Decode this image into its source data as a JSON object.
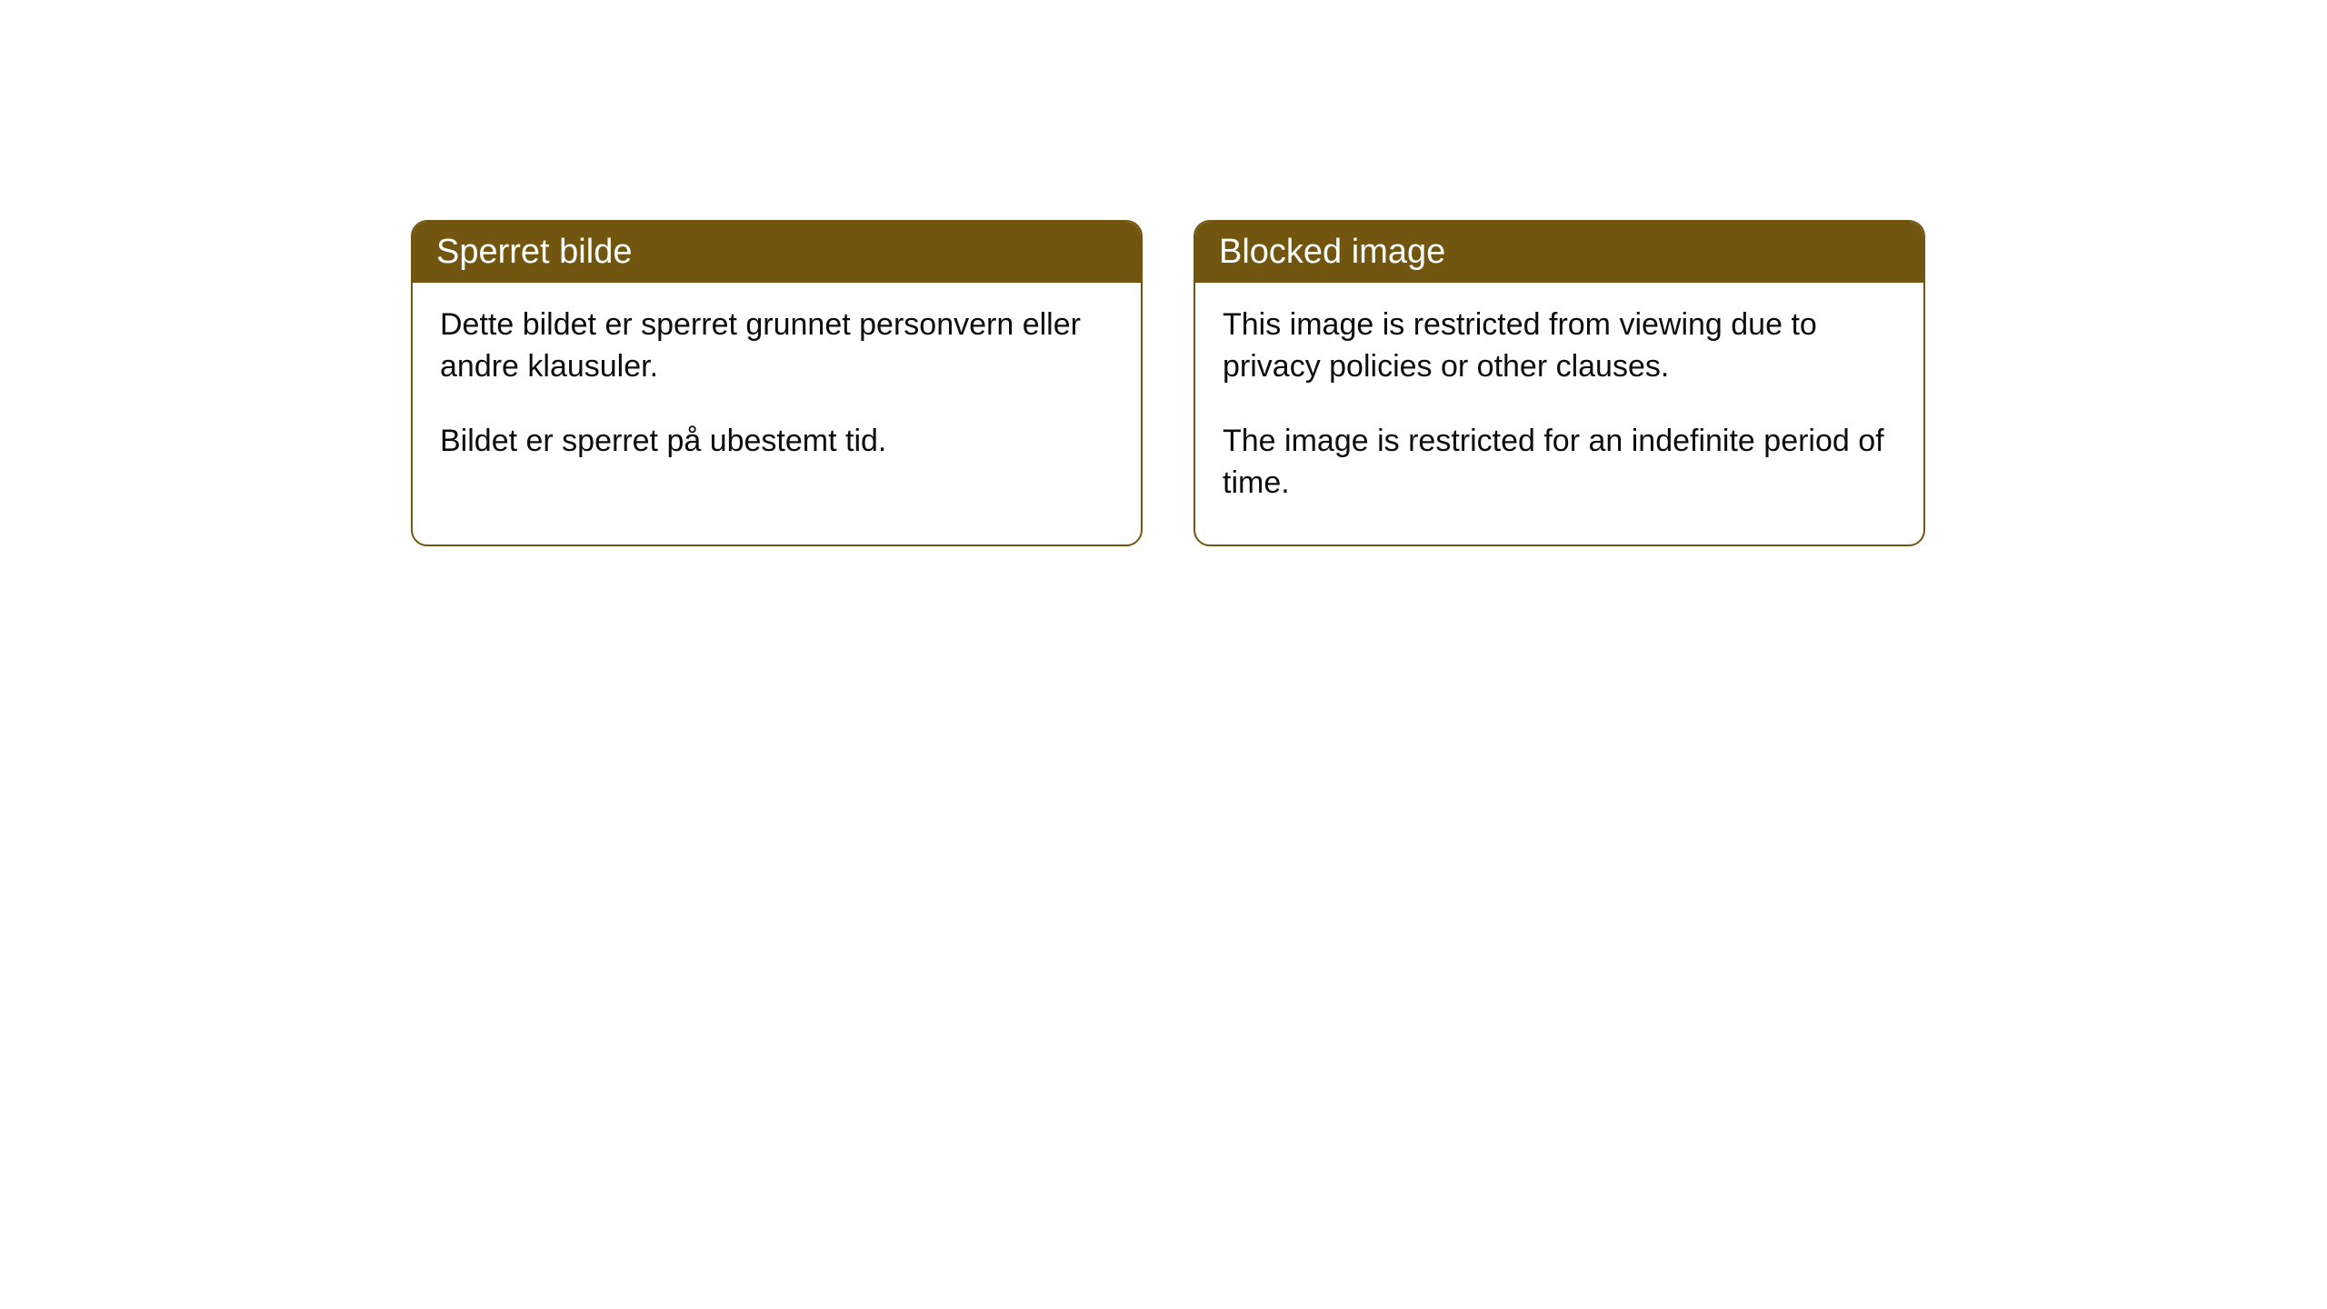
{
  "notices": [
    {
      "title": "Sperret bilde",
      "paragraph1": "Dette bildet er sperret grunnet personvern eller andre klausuler.",
      "paragraph2": "Bildet er sperret på ubestemt tid."
    },
    {
      "title": "Blocked image",
      "paragraph1": "This image is restricted from viewing due to privacy policies or other clauses.",
      "paragraph2": "The image is restricted for an indefinite period of time."
    }
  ],
  "styling": {
    "header_background": "#725610",
    "header_text_color": "#ffffff",
    "border_color": "#725610",
    "body_text_color": "#0d0d0d",
    "body_background": "#ffffff",
    "border_radius": 18,
    "header_fontsize": 38,
    "body_fontsize": 34
  }
}
